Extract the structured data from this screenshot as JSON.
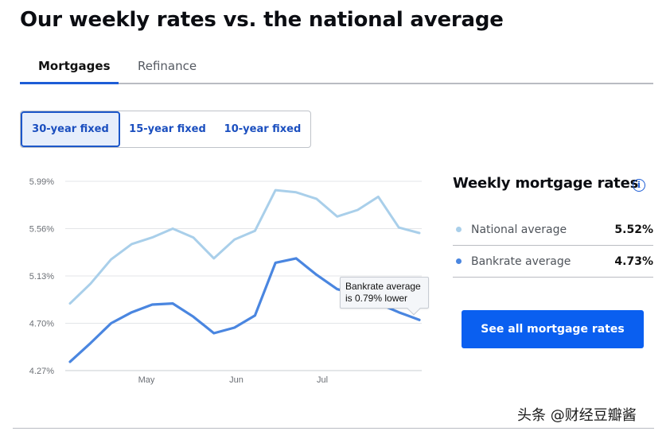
{
  "page": {
    "title": "Our weekly rates vs. the national average"
  },
  "tabs": [
    {
      "label": "Mortgages",
      "active": true
    },
    {
      "label": "Refinance",
      "active": false
    }
  ],
  "loan_terms": [
    {
      "label": "30-year fixed",
      "selected": true
    },
    {
      "label": "15-year fixed",
      "selected": false
    },
    {
      "label": "10-year fixed",
      "selected": false
    }
  ],
  "tooltip": {
    "line1": "Bankrate average",
    "line2": "is 0.79% lower"
  },
  "sidebar": {
    "title": "Weekly mortgage rates",
    "info_icon": "info-icon",
    "legend": [
      {
        "label": "National average",
        "value": "5.52%",
        "color": "#a9cfea"
      },
      {
        "label": "Bankrate average",
        "value": "4.73%",
        "color": "#4a86e0"
      }
    ],
    "cta_label": "See all mortgage rates"
  },
  "watermark": "头条 @财经豆瓣酱",
  "colors": {
    "accent": "#1d5dd6",
    "cta": "#0a5ff0",
    "national_line": "#a9cfea",
    "bankrate_line": "#4a86e0"
  },
  "chart_data": {
    "type": "line",
    "title": "Weekly mortgage rates (30-year fixed)",
    "xlabel": "",
    "ylabel": "",
    "x_tick_labels": [
      "May",
      "Jun",
      "Jul"
    ],
    "y_tick_labels": [
      "5.99%",
      "5.56%",
      "5.13%",
      "4.70%",
      "4.27%"
    ],
    "ylim": [
      4.27,
      5.99
    ],
    "grid": true,
    "legend_position": "right-panel",
    "x": [
      1,
      2,
      3,
      4,
      5,
      6,
      7,
      8,
      9,
      10,
      11,
      12,
      13,
      14,
      15,
      16,
      17,
      18
    ],
    "series": [
      {
        "name": "National average",
        "color": "#a9cfea",
        "values": [
          4.88,
          5.06,
          5.28,
          5.42,
          5.48,
          5.56,
          5.48,
          5.29,
          5.46,
          5.54,
          5.91,
          5.89,
          5.83,
          5.67,
          5.73,
          5.85,
          5.57,
          5.52
        ]
      },
      {
        "name": "Bankrate average",
        "color": "#4a86e0",
        "values": [
          4.35,
          4.52,
          4.7,
          4.8,
          4.87,
          4.88,
          4.76,
          4.61,
          4.66,
          4.77,
          5.25,
          5.29,
          5.14,
          5.01,
          4.96,
          4.88,
          4.8,
          4.73
        ]
      }
    ],
    "annotations": [
      "Bankrate average is 0.79% lower"
    ]
  }
}
